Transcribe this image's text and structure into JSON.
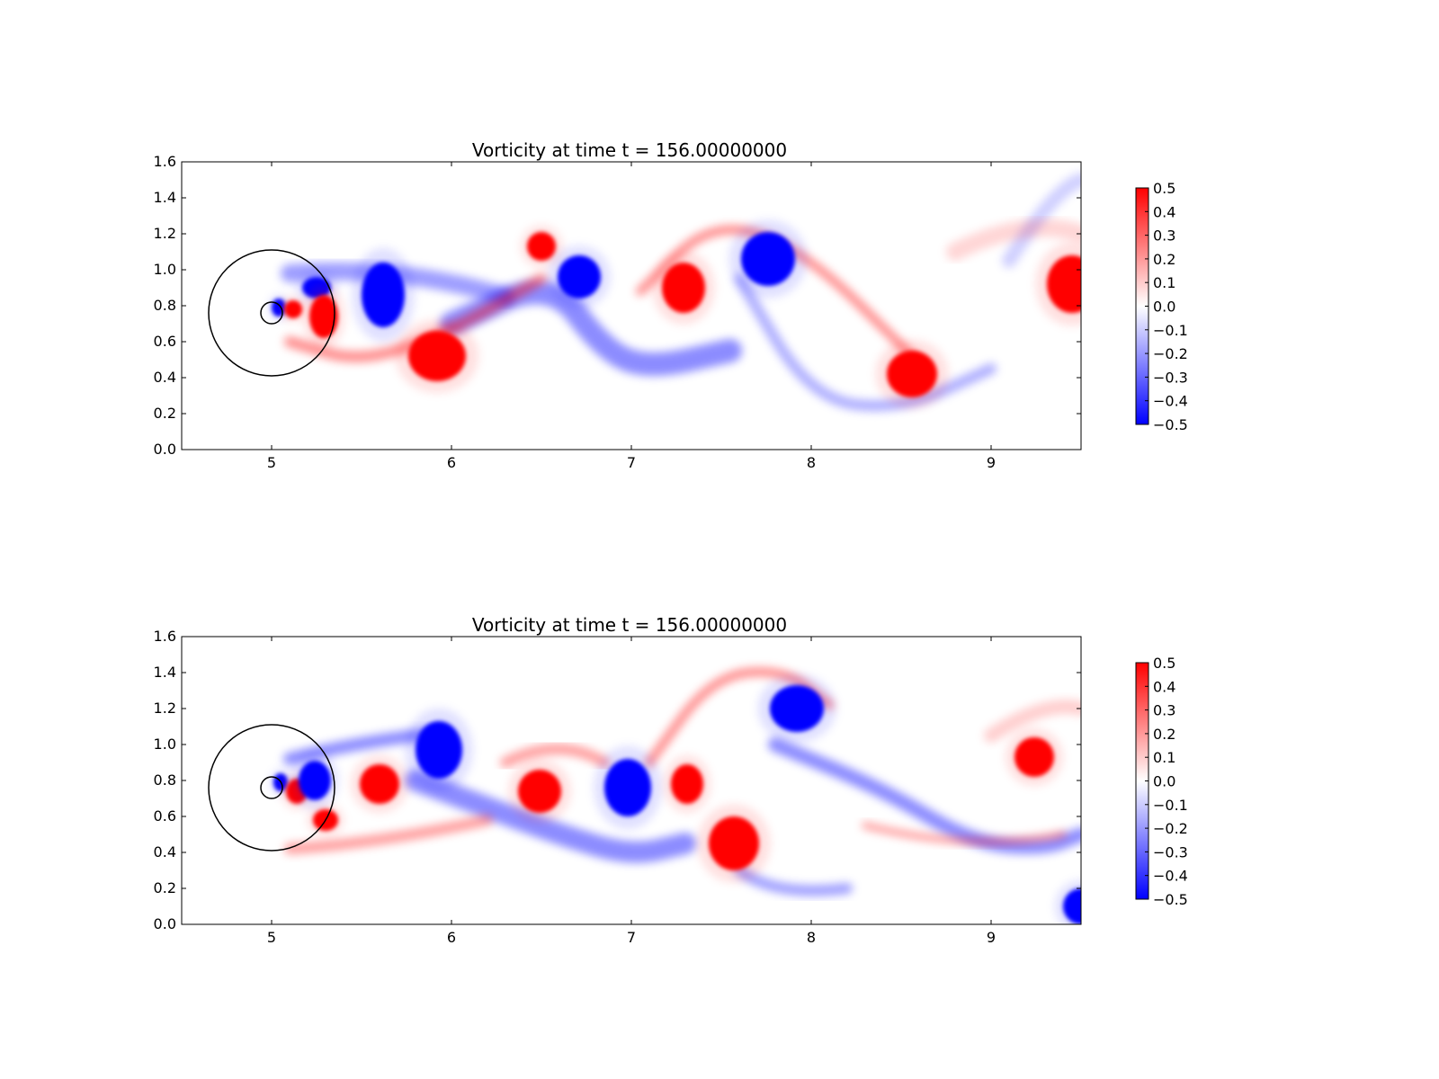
{
  "chart_data": [
    {
      "type": "heatmap",
      "title": "Vorticity at time t =   156.00000000",
      "xlabel": "",
      "ylabel": "",
      "xlim": [
        4.5,
        9.5
      ],
      "ylim": [
        0.0,
        1.6
      ],
      "xticks": [
        5,
        6,
        7,
        8,
        9
      ],
      "yticks": [
        0.0,
        0.2,
        0.4,
        0.6,
        0.8,
        1.0,
        1.2,
        1.4,
        1.6
      ],
      "colormap": "bwr",
      "colors": {
        "negative": "#0000ff",
        "zero": "#ffffff",
        "positive": "#ff0000"
      },
      "colorbar": {
        "range": [
          -0.5,
          0.5
        ],
        "ticks": [
          0.5,
          0.4,
          0.3,
          0.2,
          0.1,
          0.0,
          -0.1,
          -0.2,
          -0.3,
          -0.4,
          -0.5
        ],
        "placement": "right"
      },
      "circles": [
        {
          "cx": 5.0,
          "cy": 0.76,
          "r": 0.35
        },
        {
          "cx": 5.0,
          "cy": 0.76,
          "r": 0.06
        }
      ],
      "vortices": [
        {
          "x": 5.04,
          "y": 0.79,
          "rx": 0.04,
          "ry": 0.05,
          "value": -0.5
        },
        {
          "x": 5.12,
          "y": 0.78,
          "rx": 0.05,
          "ry": 0.05,
          "value": 0.5
        },
        {
          "x": 5.25,
          "y": 0.9,
          "rx": 0.08,
          "ry": 0.06,
          "value": -0.5
        },
        {
          "x": 5.29,
          "y": 0.74,
          "rx": 0.08,
          "ry": 0.12,
          "value": 0.5
        },
        {
          "x": 5.62,
          "y": 0.86,
          "rx": 0.12,
          "ry": 0.18,
          "value": -0.5
        },
        {
          "x": 5.92,
          "y": 0.52,
          "rx": 0.16,
          "ry": 0.14,
          "value": 0.5
        },
        {
          "x": 6.5,
          "y": 1.13,
          "rx": 0.08,
          "ry": 0.08,
          "value": 0.5
        },
        {
          "x": 6.71,
          "y": 0.96,
          "rx": 0.12,
          "ry": 0.12,
          "value": -0.5
        },
        {
          "x": 7.29,
          "y": 0.9,
          "rx": 0.12,
          "ry": 0.14,
          "value": 0.5
        },
        {
          "x": 7.76,
          "y": 1.06,
          "rx": 0.15,
          "ry": 0.15,
          "value": -0.5
        },
        {
          "x": 8.56,
          "y": 0.42,
          "rx": 0.14,
          "ry": 0.13,
          "value": 0.5
        },
        {
          "x": 9.45,
          "y": 0.92,
          "rx": 0.14,
          "ry": 0.16,
          "value": 0.5
        }
      ],
      "filaments": [
        {
          "points": [
            [
              5.1,
              0.98
            ],
            [
              5.7,
              1.03
            ],
            [
              6.3,
              0.85
            ]
          ],
          "width": 0.1,
          "value": -0.12
        },
        {
          "points": [
            [
              6.0,
              0.7
            ],
            [
              6.55,
              0.95
            ],
            [
              6.85,
              0.55
            ],
            [
              7.1,
              0.45
            ],
            [
              7.55,
              0.55
            ]
          ],
          "width": 0.13,
          "value": -0.15
        },
        {
          "points": [
            [
              5.1,
              0.6
            ],
            [
              5.5,
              0.48
            ],
            [
              6.0,
              0.66
            ],
            [
              6.5,
              0.95
            ]
          ],
          "width": 0.06,
          "value": 0.15
        },
        {
          "points": [
            [
              7.05,
              0.88
            ],
            [
              7.45,
              1.28
            ],
            [
              7.95,
              1.12
            ],
            [
              8.6,
              0.48
            ]
          ],
          "width": 0.05,
          "value": 0.14
        },
        {
          "points": [
            [
              7.6,
              0.95
            ],
            [
              8.0,
              0.28
            ],
            [
              8.5,
              0.22
            ],
            [
              9.0,
              0.45
            ]
          ],
          "width": 0.06,
          "value": -0.1
        },
        {
          "points": [
            [
              9.1,
              1.05
            ],
            [
              9.35,
              1.45
            ],
            [
              9.5,
              1.5
            ]
          ],
          "width": 0.08,
          "value": -0.06
        },
        {
          "points": [
            [
              8.8,
              1.1
            ],
            [
              9.2,
              1.3
            ],
            [
              9.5,
              1.2
            ]
          ],
          "width": 0.1,
          "value": 0.05
        }
      ]
    },
    {
      "type": "heatmap",
      "title": "Vorticity at time t =   156.00000000",
      "xlabel": "",
      "ylabel": "",
      "xlim": [
        4.5,
        9.5
      ],
      "ylim": [
        0.0,
        1.6
      ],
      "xticks": [
        5,
        6,
        7,
        8,
        9
      ],
      "yticks": [
        0.0,
        0.2,
        0.4,
        0.6,
        0.8,
        1.0,
        1.2,
        1.4,
        1.6
      ],
      "colormap": "bwr",
      "colors": {
        "negative": "#0000ff",
        "zero": "#ffffff",
        "positive": "#ff0000"
      },
      "colorbar": {
        "range": [
          -0.5,
          0.5
        ],
        "ticks": [
          0.5,
          0.4,
          0.3,
          0.2,
          0.1,
          0.0,
          -0.1,
          -0.2,
          -0.3,
          -0.4,
          -0.5
        ],
        "placement": "right"
      },
      "circles": [
        {
          "cx": 5.0,
          "cy": 0.76,
          "r": 0.35
        },
        {
          "cx": 5.0,
          "cy": 0.76,
          "r": 0.06
        }
      ],
      "vortices": [
        {
          "x": 5.05,
          "y": 0.79,
          "rx": 0.04,
          "ry": 0.05,
          "value": -0.5
        },
        {
          "x": 5.14,
          "y": 0.74,
          "rx": 0.06,
          "ry": 0.07,
          "value": 0.5
        },
        {
          "x": 5.24,
          "y": 0.8,
          "rx": 0.09,
          "ry": 0.11,
          "value": -0.5
        },
        {
          "x": 5.3,
          "y": 0.58,
          "rx": 0.07,
          "ry": 0.06,
          "value": 0.5
        },
        {
          "x": 5.6,
          "y": 0.78,
          "rx": 0.11,
          "ry": 0.11,
          "value": 0.5
        },
        {
          "x": 5.93,
          "y": 0.97,
          "rx": 0.13,
          "ry": 0.16,
          "value": -0.5
        },
        {
          "x": 6.49,
          "y": 0.74,
          "rx": 0.12,
          "ry": 0.12,
          "value": 0.5
        },
        {
          "x": 6.98,
          "y": 0.76,
          "rx": 0.13,
          "ry": 0.16,
          "value": -0.5
        },
        {
          "x": 7.31,
          "y": 0.78,
          "rx": 0.09,
          "ry": 0.11,
          "value": 0.5
        },
        {
          "x": 7.57,
          "y": 0.45,
          "rx": 0.14,
          "ry": 0.15,
          "value": 0.5
        },
        {
          "x": 7.92,
          "y": 1.2,
          "rx": 0.15,
          "ry": 0.13,
          "value": -0.5
        },
        {
          "x": 9.24,
          "y": 0.93,
          "rx": 0.11,
          "ry": 0.11,
          "value": 0.5
        },
        {
          "x": 9.5,
          "y": 0.1,
          "rx": 0.1,
          "ry": 0.1,
          "value": -0.5
        }
      ],
      "filaments": [
        {
          "points": [
            [
              5.1,
              0.92
            ],
            [
              5.5,
              1.02
            ],
            [
              5.9,
              1.06
            ]
          ],
          "width": 0.07,
          "value": -0.14
        },
        {
          "points": [
            [
              5.8,
              0.8
            ],
            [
              6.2,
              0.65
            ],
            [
              6.6,
              0.5
            ],
            [
              7.0,
              0.38
            ],
            [
              7.3,
              0.45
            ]
          ],
          "width": 0.12,
          "value": -0.14
        },
        {
          "points": [
            [
              5.1,
              0.42
            ],
            [
              5.6,
              0.45
            ],
            [
              6.2,
              0.58
            ]
          ],
          "width": 0.06,
          "value": 0.12
        },
        {
          "points": [
            [
              6.3,
              0.9
            ],
            [
              6.6,
              1.05
            ],
            [
              6.85,
              0.9
            ]
          ],
          "width": 0.06,
          "value": 0.12
        },
        {
          "points": [
            [
              7.1,
              0.9
            ],
            [
              7.45,
              1.38
            ],
            [
              7.85,
              1.42
            ],
            [
              8.1,
              1.22
            ]
          ],
          "width": 0.05,
          "value": 0.14
        },
        {
          "points": [
            [
              7.6,
              0.3
            ],
            [
              7.8,
              0.15
            ],
            [
              8.2,
              0.2
            ]
          ],
          "width": 0.06,
          "value": -0.12
        },
        {
          "points": [
            [
              7.8,
              1.0
            ],
            [
              8.4,
              0.75
            ],
            [
              8.9,
              0.45
            ],
            [
              9.3,
              0.42
            ],
            [
              9.5,
              0.5
            ]
          ],
          "width": 0.08,
          "value": -0.14
        },
        {
          "points": [
            [
              8.3,
              0.55
            ],
            [
              8.9,
              0.4
            ],
            [
              9.4,
              0.5
            ]
          ],
          "width": 0.04,
          "value": 0.12
        },
        {
          "points": [
            [
              9.0,
              1.05
            ],
            [
              9.3,
              1.25
            ],
            [
              9.5,
              1.2
            ]
          ],
          "width": 0.08,
          "value": 0.06
        }
      ]
    }
  ]
}
